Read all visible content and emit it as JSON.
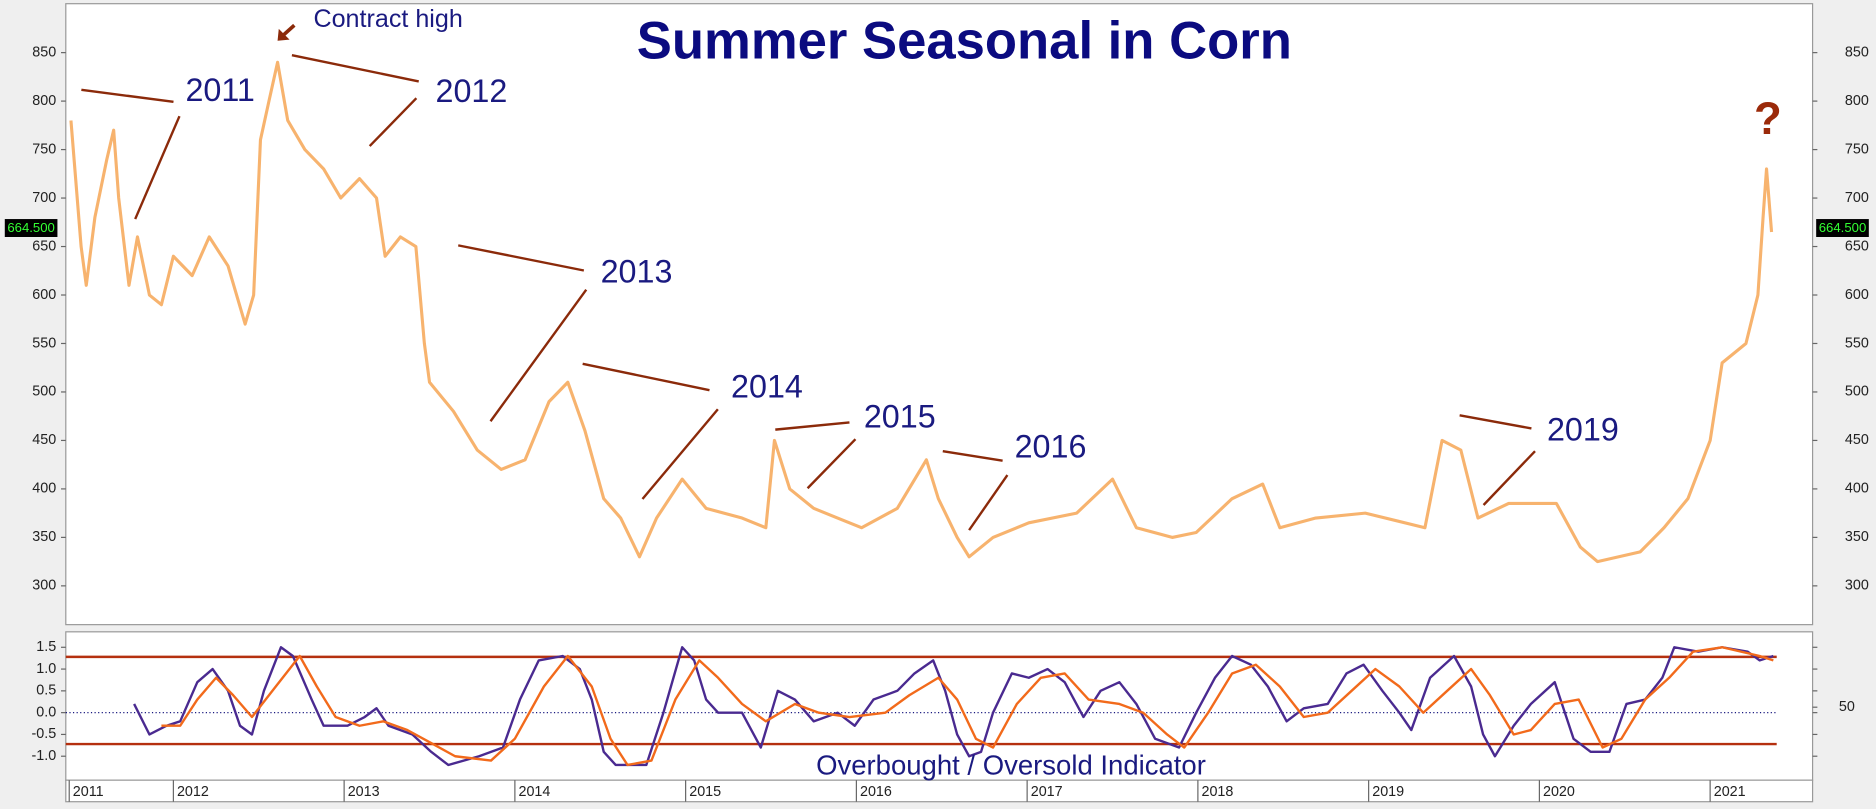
{
  "chart_data": [
    {
      "type": "line",
      "title": "Summer Seasonal in Corn",
      "annotations": [
        "Contract high",
        "2011",
        "2012",
        "2013",
        "2014",
        "2015",
        "2016",
        "2019",
        "?"
      ],
      "last_label": "664.500",
      "xlim": [
        2011.37,
        2021.6
      ],
      "ylim": [
        260,
        898
      ],
      "yticks": [
        300,
        350,
        400,
        450,
        500,
        550,
        600,
        650,
        700,
        750,
        800,
        850
      ],
      "series": [
        {
          "color": "#f7b36e",
          "x": [
            2011.4,
            2011.46,
            2011.49,
            2011.54,
            2011.61,
            2011.65,
            2011.68,
            2011.74,
            2011.79,
            2011.86,
            2011.93,
            2012.0,
            2012.11,
            2012.21,
            2012.32,
            2012.42,
            2012.47,
            2012.51,
            2012.56,
            2012.61,
            2012.67,
            2012.77,
            2012.88,
            2012.98,
            2013.09,
            2013.19,
            2013.24,
            2013.33,
            2013.42,
            2013.47,
            2013.5,
            2013.64,
            2013.78,
            2013.92,
            2014.06,
            2014.2,
            2014.31,
            2014.41,
            2014.52,
            2014.62,
            2014.73,
            2014.83,
            2014.98,
            2015.12,
            2015.33,
            2015.47,
            2015.52,
            2015.61,
            2015.75,
            2015.89,
            2016.03,
            2016.24,
            2016.41,
            2016.48,
            2016.59,
            2016.66,
            2016.8,
            2017.01,
            2017.29,
            2017.5,
            2017.64,
            2017.85,
            2017.99,
            2018.2,
            2018.38,
            2018.48,
            2018.69,
            2018.98,
            2019.33,
            2019.43,
            2019.54,
            2019.64,
            2019.82,
            2020.1,
            2020.24,
            2020.34,
            2020.59,
            2020.73,
            2020.87,
            2021.0,
            2021.07,
            2021.21,
            2021.28,
            2021.31,
            2021.33,
            2021.36
          ],
          "values": [
            780,
            650,
            610,
            680,
            740,
            770,
            700,
            610,
            660,
            600,
            590,
            640,
            620,
            660,
            630,
            570,
            600,
            760,
            800,
            840,
            780,
            750,
            730,
            700,
            720,
            700,
            640,
            660,
            650,
            550,
            510,
            480,
            440,
            420,
            430,
            490,
            510,
            460,
            390,
            370,
            330,
            370,
            410,
            380,
            370,
            360,
            450,
            400,
            380,
            370,
            360,
            380,
            430,
            390,
            350,
            330,
            350,
            365,
            375,
            410,
            360,
            350,
            355,
            390,
            405,
            360,
            370,
            375,
            360,
            450,
            440,
            370,
            385,
            385,
            340,
            325,
            335,
            360,
            390,
            450,
            530,
            550,
            600,
            680,
            730,
            665
          ]
        }
      ]
    },
    {
      "type": "line",
      "title": "Overbought / Oversold Indicator",
      "xlim": [
        2011.37,
        2021.6
      ],
      "xticks": [
        {
          "value": 2011.39,
          "label": "2011"
        },
        2012,
        2013,
        2014,
        2015,
        2016,
        2017,
        2018,
        2019,
        2020,
        2021
      ],
      "ylim": [
        -1.55,
        1.8
      ],
      "yticks": [
        {
          "value": -1.0,
          "label": "-1.0"
        },
        -0.5,
        {
          "value": 0,
          "label": "0.0"
        },
        0.5,
        {
          "value": 1.0,
          "label": "1.0"
        },
        1.5
      ],
      "y2lim": [
        0,
        100
      ],
      "y2ticks": [
        50
      ],
      "hlines": [
        {
          "value": 1.28,
          "color": "#b5300f",
          "style": "solid"
        },
        {
          "value": -0.72,
          "color": "#b5300f",
          "style": "solid"
        },
        {
          "value": 0,
          "color": "#1a1a80",
          "style": "dotted"
        }
      ],
      "series": [
        {
          "color": "#4a2a90",
          "x": [
            2011.77,
            2011.86,
            2011.96,
            2012.04,
            2012.14,
            2012.23,
            2012.32,
            2012.39,
            2012.46,
            2012.53,
            2012.63,
            2012.7,
            2012.81,
            2012.88,
            2013.02,
            2013.12,
            2013.19,
            2013.26,
            2013.4,
            2013.51,
            2013.61,
            2013.79,
            2013.93,
            2014.03,
            2014.14,
            2014.28,
            2014.38,
            2014.45,
            2014.52,
            2014.59,
            2014.77,
            2014.87,
            2014.98,
            2015.05,
            2015.12,
            2015.19,
            2015.33,
            2015.44,
            2015.54,
            2015.64,
            2015.75,
            2015.89,
            2015.99,
            2016.1,
            2016.24,
            2016.34,
            2016.45,
            2016.52,
            2016.59,
            2016.66,
            2016.73,
            2016.8,
            2016.91,
            2017.01,
            2017.12,
            2017.22,
            2017.33,
            2017.43,
            2017.54,
            2017.64,
            2017.75,
            2017.89,
            2017.99,
            2018.1,
            2018.2,
            2018.31,
            2018.41,
            2018.52,
            2018.62,
            2018.76,
            2018.87,
            2018.97,
            2019.08,
            2019.18,
            2019.25,
            2019.36,
            2019.5,
            2019.6,
            2019.67,
            2019.74,
            2019.85,
            2019.95,
            2020.09,
            2020.2,
            2020.3,
            2020.41,
            2020.51,
            2020.62,
            2020.72,
            2020.79,
            2020.93,
            2021.07,
            2021.22,
            2021.29,
            2021.37
          ],
          "values": [
            0.2,
            -0.5,
            -0.3,
            -0.2,
            0.7,
            1.0,
            0.5,
            -0.3,
            -0.5,
            0.5,
            1.5,
            1.3,
            0.3,
            -0.3,
            -0.3,
            -0.1,
            0.1,
            -0.3,
            -0.5,
            -0.9,
            -1.2,
            -1.0,
            -0.8,
            0.3,
            1.2,
            1.3,
            1.0,
            0.3,
            -0.9,
            -1.2,
            -1.2,
            0.0,
            1.5,
            1.2,
            0.3,
            0.0,
            0.0,
            -0.8,
            0.5,
            0.3,
            -0.2,
            0.0,
            -0.3,
            0.3,
            0.5,
            0.9,
            1.2,
            0.5,
            -0.5,
            -1.0,
            -0.9,
            0.0,
            0.9,
            0.8,
            1.0,
            0.7,
            -0.1,
            0.5,
            0.7,
            0.2,
            -0.6,
            -0.8,
            0.0,
            0.8,
            1.3,
            1.1,
            0.6,
            -0.2,
            0.1,
            0.2,
            0.9,
            1.1,
            0.5,
            0.0,
            -0.4,
            0.8,
            1.3,
            0.6,
            -0.5,
            -1.0,
            -0.3,
            0.2,
            0.7,
            -0.6,
            -0.9,
            -0.9,
            0.2,
            0.3,
            0.8,
            1.5,
            1.4,
            1.5,
            1.4,
            1.2,
            1.3
          ]
        },
        {
          "color": "#f26a1b",
          "x": [
            2011.93,
            2012.04,
            2012.14,
            2012.25,
            2012.35,
            2012.46,
            2012.6,
            2012.74,
            2012.84,
            2012.95,
            2013.09,
            2013.23,
            2013.37,
            2013.51,
            2013.65,
            2013.86,
            2014.0,
            2014.17,
            2014.31,
            2014.45,
            2014.56,
            2014.66,
            2014.8,
            2014.94,
            2015.08,
            2015.19,
            2015.33,
            2015.47,
            2015.64,
            2015.78,
            2015.96,
            2016.17,
            2016.31,
            2016.48,
            2016.59,
            2016.7,
            2016.8,
            2016.94,
            2017.08,
            2017.22,
            2017.36,
            2017.54,
            2017.68,
            2017.82,
            2017.92,
            2018.06,
            2018.2,
            2018.34,
            2018.48,
            2018.62,
            2018.76,
            2018.9,
            2019.04,
            2019.18,
            2019.32,
            2019.46,
            2019.6,
            2019.71,
            2019.85,
            2019.95,
            2020.09,
            2020.23,
            2020.37,
            2020.48,
            2020.62,
            2020.76,
            2020.9,
            2021.07,
            2021.29,
            2021.37
          ],
          "values": [
            -0.3,
            -0.3,
            0.3,
            0.8,
            0.4,
            -0.1,
            0.6,
            1.3,
            0.6,
            -0.1,
            -0.3,
            -0.2,
            -0.4,
            -0.7,
            -1.0,
            -1.1,
            -0.6,
            0.6,
            1.3,
            0.6,
            -0.6,
            -1.2,
            -1.1,
            0.3,
            1.2,
            0.8,
            0.2,
            -0.2,
            0.2,
            0.0,
            -0.1,
            0.0,
            0.4,
            0.8,
            0.3,
            -0.6,
            -0.8,
            0.2,
            0.8,
            0.9,
            0.3,
            0.2,
            0.0,
            -0.5,
            -0.8,
            0.0,
            0.9,
            1.1,
            0.6,
            -0.1,
            0.0,
            0.5,
            1.0,
            0.6,
            0.0,
            0.5,
            1.0,
            0.4,
            -0.5,
            -0.4,
            0.2,
            0.3,
            -0.8,
            -0.6,
            0.3,
            0.8,
            1.4,
            1.5,
            1.3,
            1.2
          ]
        }
      ]
    }
  ]
}
